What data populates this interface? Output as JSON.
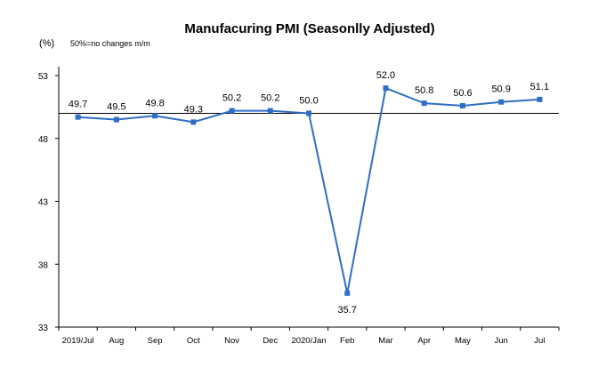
{
  "chart_data": {
    "type": "line",
    "title": "Manufacuring PMI (Seasonlly Adjusted)",
    "ylabel": "(%)",
    "note": "50%=no changes m/m",
    "categories": [
      "2019/Jul",
      "Aug",
      "Sep",
      "Oct",
      "Nov",
      "Dec",
      "2020/Jan",
      "Feb",
      "Mar",
      "Apr",
      "May",
      "Jun",
      "Jul"
    ],
    "series": [
      {
        "values": [
          49.7,
          49.5,
          49.8,
          49.3,
          50.2,
          50.2,
          50.0,
          35.7,
          52.0,
          50.8,
          50.6,
          50.9,
          51.1
        ],
        "labels": [
          "49.7",
          "49.5",
          "49.8",
          "49.3",
          "50.2",
          "50.2",
          "50.0",
          "35.7",
          "52.0",
          "50.8",
          "50.6",
          "50.9",
          "51.1"
        ]
      }
    ],
    "ylim": [
      33,
      53
    ],
    "yticks": [
      33,
      38,
      43,
      48,
      53
    ],
    "reference_line": 50,
    "grid": false,
    "line_color": "#2E6EC5"
  }
}
